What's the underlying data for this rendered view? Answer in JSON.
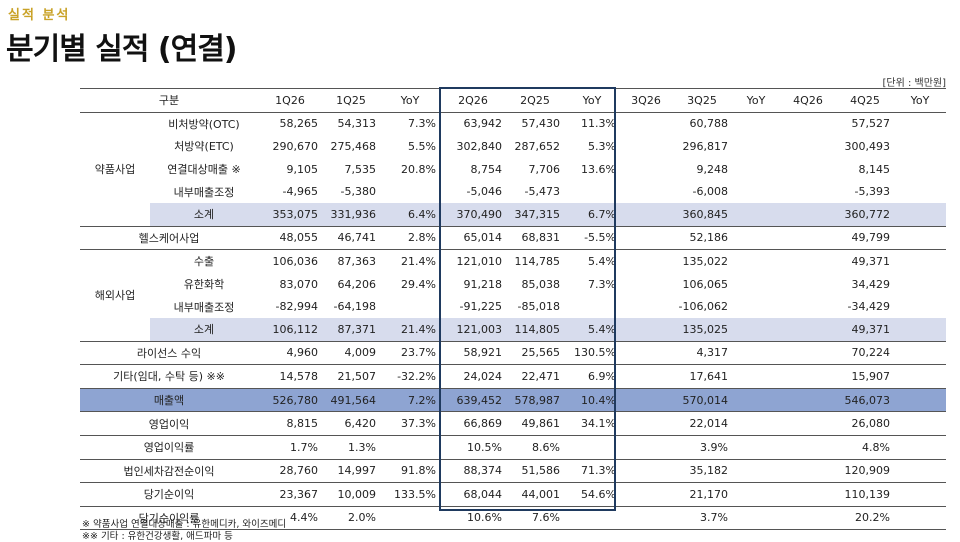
{
  "kicker": "실적 분석",
  "title": "분기별 실적 (연결)",
  "unit": "[단위 : 백만원]",
  "header": [
    "구분",
    "1Q26",
    "1Q25",
    "YoY",
    "2Q26",
    "2Q25",
    "YoY",
    "3Q26",
    "3Q25",
    "YoY",
    "4Q26",
    "4Q25",
    "YoY"
  ],
  "groups": {
    "pharma": "약품사업",
    "overseas": "해외사업"
  },
  "rows": [
    {
      "label": "비처방약(OTC)",
      "q1": [
        "58,265",
        "54,313",
        "7.3%"
      ],
      "q2": [
        "63,942",
        "57,430",
        "11.3%"
      ],
      "q3": [
        "",
        "60,788",
        ""
      ],
      "q4": [
        "",
        "57,527",
        ""
      ]
    },
    {
      "label": "처방약(ETC)",
      "q1": [
        "290,670",
        "275,468",
        "5.5%"
      ],
      "q2": [
        "302,840",
        "287,652",
        "5.3%"
      ],
      "q3": [
        "",
        "296,817",
        ""
      ],
      "q4": [
        "",
        "300,493",
        ""
      ]
    },
    {
      "label": "연결대상매출 ※",
      "q1": [
        "9,105",
        "7,535",
        "20.8%"
      ],
      "q2": [
        "8,754",
        "7,706",
        "13.6%"
      ],
      "q3": [
        "",
        "9,248",
        ""
      ],
      "q4": [
        "",
        "8,145",
        ""
      ]
    },
    {
      "label": "내부매출조정",
      "q1": [
        "-4,965",
        "-5,380",
        ""
      ],
      "q2": [
        "-5,046",
        "-5,473",
        ""
      ],
      "q3": [
        "",
        "-6,008",
        ""
      ],
      "q4": [
        "",
        "-5,393",
        ""
      ]
    },
    {
      "label": "소계",
      "q1": [
        "353,075",
        "331,936",
        "6.4%"
      ],
      "q2": [
        "370,490",
        "347,315",
        "6.7%"
      ],
      "q3": [
        "",
        "360,845",
        ""
      ],
      "q4": [
        "",
        "360,772",
        ""
      ]
    },
    {
      "label": "헬스케어사업",
      "q1": [
        "48,055",
        "46,741",
        "2.8%"
      ],
      "q2": [
        "65,014",
        "68,831",
        "-5.5%"
      ],
      "q3": [
        "",
        "52,186",
        ""
      ],
      "q4": [
        "",
        "49,799",
        ""
      ]
    },
    {
      "label": "수출",
      "q1": [
        "106,036",
        "87,363",
        "21.4%"
      ],
      "q2": [
        "121,010",
        "114,785",
        "5.4%"
      ],
      "q3": [
        "",
        "135,022",
        ""
      ],
      "q4": [
        "",
        "49,371",
        ""
      ]
    },
    {
      "label": "유한화학",
      "q1": [
        "83,070",
        "64,206",
        "29.4%"
      ],
      "q2": [
        "91,218",
        "85,038",
        "7.3%"
      ],
      "q3": [
        "",
        "106,065",
        ""
      ],
      "q4": [
        "",
        "34,429",
        ""
      ]
    },
    {
      "label": "내부매출조정",
      "q1": [
        "-82,994",
        "-64,198",
        ""
      ],
      "q2": [
        "-91,225",
        "-85,018",
        ""
      ],
      "q3": [
        "",
        "-106,062",
        ""
      ],
      "q4": [
        "",
        "-34,429",
        ""
      ]
    },
    {
      "label": "소계",
      "q1": [
        "106,112",
        "87,371",
        "21.4%"
      ],
      "q2": [
        "121,003",
        "114,805",
        "5.4%"
      ],
      "q3": [
        "",
        "135,025",
        ""
      ],
      "q4": [
        "",
        "49,371",
        ""
      ]
    },
    {
      "label": "라이선스 수익",
      "q1": [
        "4,960",
        "4,009",
        "23.7%"
      ],
      "q2": [
        "58,921",
        "25,565",
        "130.5%"
      ],
      "q3": [
        "",
        "4,317",
        ""
      ],
      "q4": [
        "",
        "70,224",
        ""
      ]
    },
    {
      "label": "기타(임대, 수탁 등) ※※",
      "q1": [
        "14,578",
        "21,507",
        "-32.2%"
      ],
      "q2": [
        "24,024",
        "22,471",
        "6.9%"
      ],
      "q3": [
        "",
        "17,641",
        ""
      ],
      "q4": [
        "",
        "15,907",
        ""
      ]
    },
    {
      "label": "매출액",
      "q1": [
        "526,780",
        "491,564",
        "7.2%"
      ],
      "q2": [
        "639,452",
        "578,987",
        "10.4%"
      ],
      "q3": [
        "",
        "570,014",
        ""
      ],
      "q4": [
        "",
        "546,073",
        ""
      ]
    },
    {
      "label": "영업이익",
      "q1": [
        "8,815",
        "6,420",
        "37.3%"
      ],
      "q2": [
        "66,869",
        "49,861",
        "34.1%"
      ],
      "q3": [
        "",
        "22,014",
        ""
      ],
      "q4": [
        "",
        "26,080",
        ""
      ]
    },
    {
      "label": "영업이익률",
      "q1": [
        "1.7%",
        "1.3%",
        ""
      ],
      "q2": [
        "10.5%",
        "8.6%",
        ""
      ],
      "q3": [
        "",
        "3.9%",
        ""
      ],
      "q4": [
        "",
        "4.8%",
        ""
      ]
    },
    {
      "label": "법인세차감전순이익",
      "q1": [
        "28,760",
        "14,997",
        "91.8%"
      ],
      "q2": [
        "88,374",
        "51,586",
        "71.3%"
      ],
      "q3": [
        "",
        "35,182",
        ""
      ],
      "q4": [
        "",
        "120,909",
        ""
      ]
    },
    {
      "label": "당기순이익",
      "q1": [
        "23,367",
        "10,009",
        "133.5%"
      ],
      "q2": [
        "68,044",
        "44,001",
        "54.6%"
      ],
      "q3": [
        "",
        "21,170",
        ""
      ],
      "q4": [
        "",
        "110,139",
        ""
      ]
    },
    {
      "label": "당기순이익률",
      "q1": [
        "4.4%",
        "2.0%",
        ""
      ],
      "q2": [
        "10.6%",
        "7.6%",
        ""
      ],
      "q3": [
        "",
        "3.7%",
        ""
      ],
      "q4": [
        "",
        "20.2%",
        ""
      ]
    }
  ],
  "footnotes": [
    "※ 약품사업 연결대상매출 : 유한메디카, 와이즈메디",
    "※※ 기타 : 유한건강생활, 애드파마 등"
  ]
}
